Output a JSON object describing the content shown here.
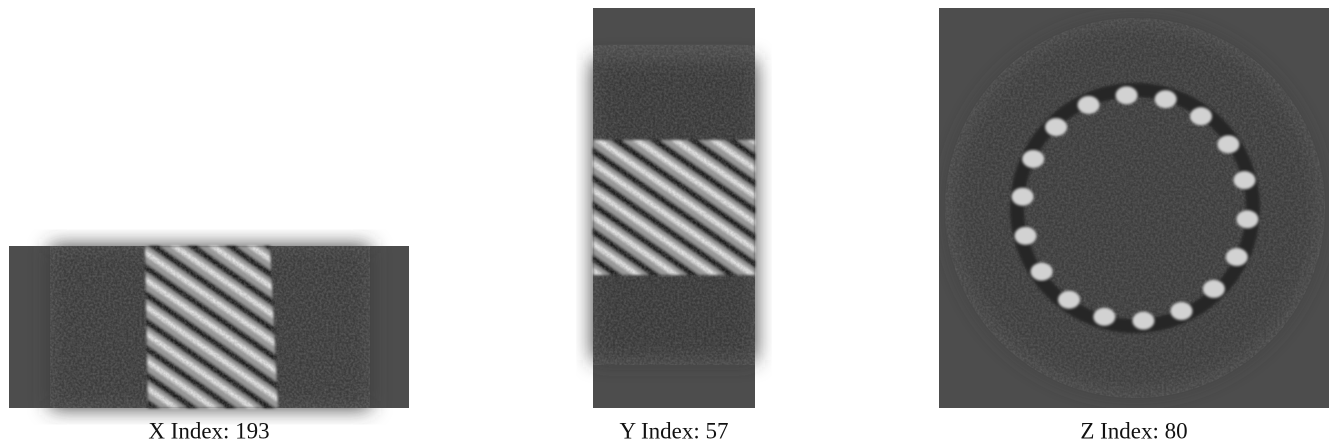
{
  "panels": [
    {
      "caption": "X Index: 193"
    },
    {
      "caption": "Y Index: 57"
    },
    {
      "caption": "Z Index: 80"
    }
  ]
}
